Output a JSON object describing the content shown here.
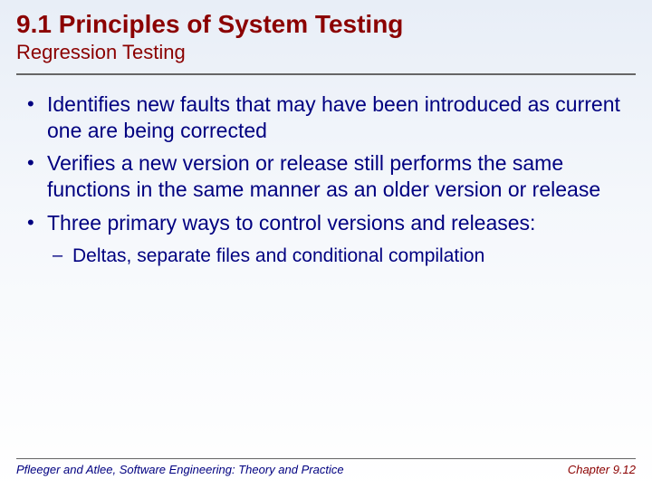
{
  "colors": {
    "title": "#8b0000",
    "body_text": "#000080",
    "rule": "#666666",
    "background_top": "#e8eef7",
    "background_bottom": "#ffffff"
  },
  "typography": {
    "title_fontsize": 28,
    "subtitle_fontsize": 22,
    "bullet_fontsize": 23,
    "subbullet_fontsize": 21,
    "footer_fontsize": 13,
    "font_family": "Lucida Sans"
  },
  "title": "9.1 Principles of System Testing",
  "subtitle": "Regression Testing",
  "bullets": [
    {
      "text": "Identifies new faults that may have been introduced as current one are being corrected"
    },
    {
      "text": "Verifies a new version or release still performs the same functions in the same manner as an older version or release"
    },
    {
      "text": "Three primary ways to control versions and releases:",
      "children": [
        {
          "text": "Deltas, separate files and conditional compilation"
        }
      ]
    }
  ],
  "footer": {
    "left": "Pfleeger and Atlee, Software Engineering: Theory and Practice",
    "right": "Chapter 9.12"
  }
}
